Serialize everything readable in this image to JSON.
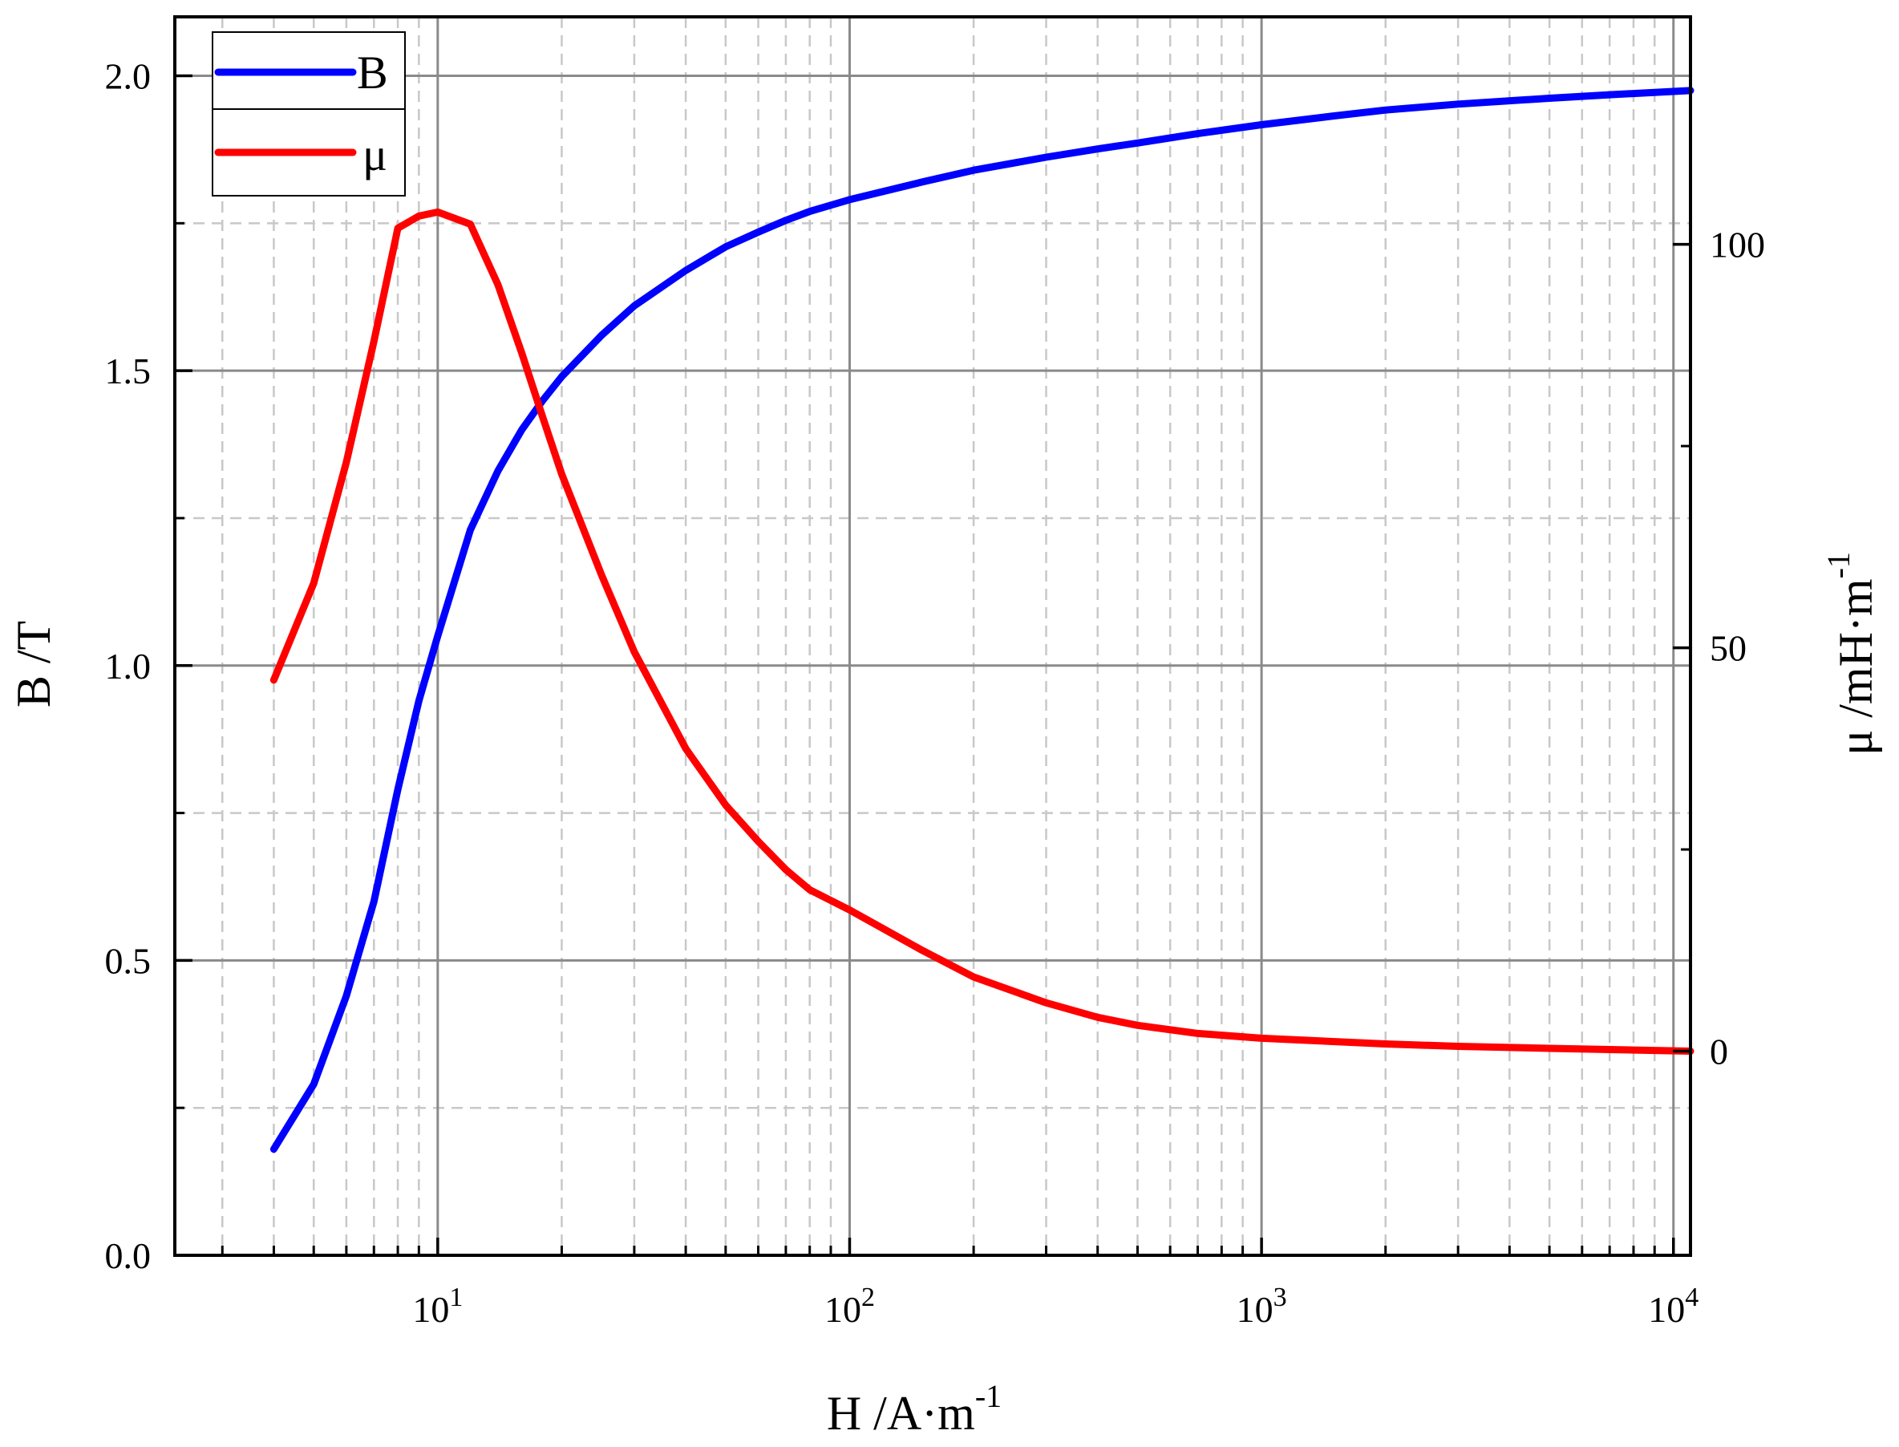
{
  "chart_data": {
    "type": "line",
    "xlabel": "H /A·m",
    "xlabel_sup": "-1",
    "ylabel": "B /T",
    "y2label": "μ /mH·m",
    "y2label_sup": "-1",
    "x_scale": "log",
    "xlim": [
      2.3,
      11000
    ],
    "ylim": [
      0,
      2.1
    ],
    "y2lim": [
      -25.3,
      128.2
    ],
    "x_ticks": [
      {
        "value": 10,
        "base": "10",
        "exp": "1"
      },
      {
        "value": 100,
        "base": "10",
        "exp": "2"
      },
      {
        "value": 1000,
        "base": "10",
        "exp": "3"
      },
      {
        "value": 10000,
        "base": "10",
        "exp": "4"
      }
    ],
    "y_ticks": [
      {
        "value": 0,
        "label": "0.0"
      },
      {
        "value": 0.5,
        "label": "0.5"
      },
      {
        "value": 1.0,
        "label": "1.0"
      },
      {
        "value": 1.5,
        "label": "1.5"
      },
      {
        "value": 2.0,
        "label": "2.0"
      }
    ],
    "y_minor_ticks": [
      0.25,
      0.75,
      1.25,
      1.75
    ],
    "y2_ticks": [
      {
        "value": 0,
        "label": "0"
      },
      {
        "value": 50,
        "label": "50"
      },
      {
        "value": 100,
        "label": "100"
      }
    ],
    "y2_minor_ticks": [
      25,
      75
    ],
    "grid": true,
    "legend": "top-left",
    "series": [
      {
        "name": "B",
        "axis": "left",
        "color": "#0000ff",
        "x": [
          4,
          5,
          6,
          7,
          8,
          9,
          10,
          12,
          14,
          16,
          18,
          20,
          25,
          30,
          40,
          50,
          60,
          70,
          80,
          100,
          150,
          200,
          300,
          400,
          500,
          700,
          1000,
          1500,
          2000,
          3000,
          5000,
          7000,
          11000
        ],
        "y": [
          0.18,
          0.29,
          0.44,
          0.6,
          0.79,
          0.94,
          1.05,
          1.23,
          1.33,
          1.4,
          1.45,
          1.49,
          1.56,
          1.61,
          1.67,
          1.71,
          1.735,
          1.755,
          1.77,
          1.79,
          1.82,
          1.84,
          1.862,
          1.876,
          1.886,
          1.902,
          1.917,
          1.932,
          1.942,
          1.952,
          1.962,
          1.968,
          1.975
        ]
      },
      {
        "name": "μ",
        "axis": "right",
        "color": "#ff0000",
        "x": [
          4,
          5,
          6,
          7,
          8,
          9,
          10,
          12,
          14,
          16,
          18,
          20,
          25,
          30,
          40,
          50,
          60,
          70,
          80,
          100,
          150,
          200,
          300,
          400,
          500,
          700,
          1000,
          2000,
          3000,
          5000,
          11000
        ],
        "y": [
          46,
          58,
          73,
          88,
          102,
          103.5,
          104,
          102.5,
          95,
          86.5,
          78.5,
          71.5,
          59,
          49.5,
          37.5,
          30.5,
          26,
          22.5,
          20,
          17.5,
          12.5,
          9.2,
          6,
          4.2,
          3.2,
          2.2,
          1.6,
          0.9,
          0.6,
          0.35,
          0
        ]
      }
    ]
  }
}
